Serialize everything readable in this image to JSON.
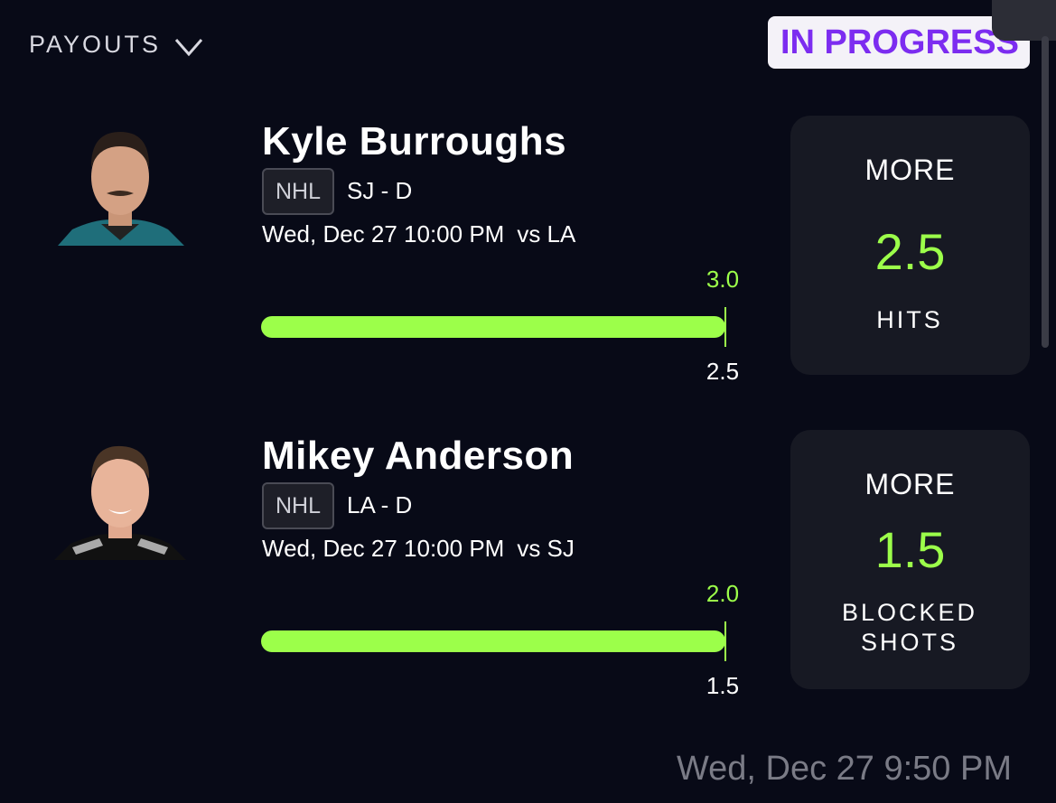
{
  "header": {
    "payouts": "PAYOUTS",
    "status": "IN PROGRESS"
  },
  "picks": [
    {
      "name": "Kyle Burroughs",
      "league": "NHL",
      "team_position": "SJ - D",
      "game_time": "Wed, Dec 27 10:00 PM",
      "opponent": "vs LA",
      "current": "3.0",
      "line_marker": "2.5",
      "direction": "MORE",
      "line": "2.5",
      "stat": "HITS"
    },
    {
      "name": "Mikey Anderson",
      "league": "NHL",
      "team_position": "LA - D",
      "game_time": "Wed, Dec 27 10:00 PM",
      "opponent": "vs SJ",
      "current": "2.0",
      "line_marker": "1.5",
      "direction": "MORE",
      "line": "1.5",
      "stat": "BLOCKED SHOTS"
    }
  ],
  "footer": {
    "timestamp": "Wed, Dec 27 9:50 PM"
  }
}
